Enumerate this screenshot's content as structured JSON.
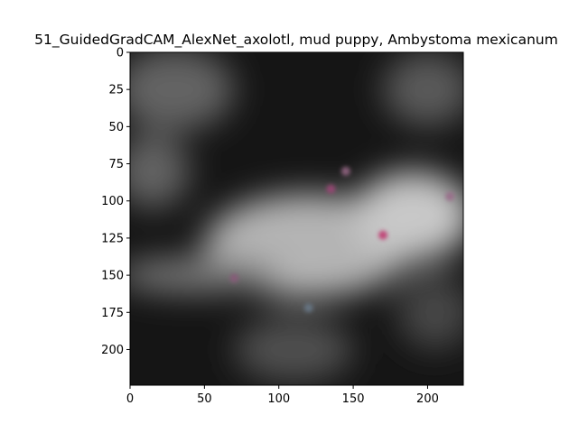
{
  "chart_data": {
    "type": "heatmap",
    "title": "51_GuidedGradCAM_AlexNet_axolotl, mud puppy, Ambystoma mexicanum",
    "xlabel": "",
    "ylabel": "",
    "xlim": [
      0,
      224
    ],
    "ylim": [
      224,
      0
    ],
    "x_ticks": [
      0,
      50,
      100,
      150,
      200
    ],
    "y_ticks": [
      0,
      25,
      50,
      75,
      100,
      125,
      150,
      175,
      200
    ],
    "grid": false,
    "colormap": "grayscale with faint RGB gradient texture",
    "heat_regions": [
      {
        "cx": 120,
        "cy": 130,
        "rx": 70,
        "ry": 35,
        "intensity": 0.75
      },
      {
        "cx": 190,
        "cy": 110,
        "rx": 40,
        "ry": 30,
        "intensity": 0.85
      },
      {
        "cx": 45,
        "cy": 150,
        "rx": 55,
        "ry": 12,
        "intensity": 0.45
      },
      {
        "cx": 30,
        "cy": 25,
        "rx": 40,
        "ry": 28,
        "intensity": 0.35
      },
      {
        "cx": 200,
        "cy": 25,
        "rx": 30,
        "ry": 25,
        "intensity": 0.3
      },
      {
        "cx": 15,
        "cy": 80,
        "rx": 25,
        "ry": 25,
        "intensity": 0.35
      },
      {
        "cx": 110,
        "cy": 200,
        "rx": 40,
        "ry": 22,
        "intensity": 0.25
      },
      {
        "cx": 205,
        "cy": 175,
        "rx": 25,
        "ry": 25,
        "intensity": 0.2
      }
    ],
    "colored_hotspots": [
      {
        "x": 170,
        "y": 123,
        "color": "#c0306a"
      },
      {
        "x": 135,
        "y": 92,
        "color": "#a04478"
      },
      {
        "x": 215,
        "y": 97,
        "color": "#9a6a8a"
      },
      {
        "x": 70,
        "y": 152,
        "color": "#8a5a7a"
      },
      {
        "x": 120,
        "y": 172,
        "color": "#6a7a8a"
      },
      {
        "x": 145,
        "y": 80,
        "color": "#9a6a88"
      }
    ]
  }
}
